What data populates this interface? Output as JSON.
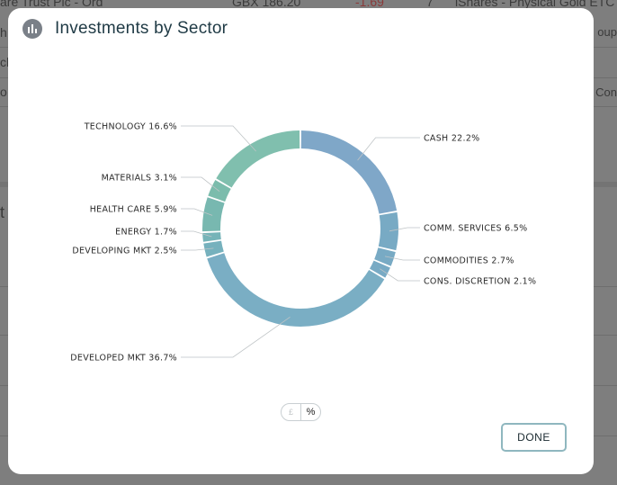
{
  "background": {
    "row1": {
      "c1": "are Trust Plc - Ord",
      "c2": "GBX 186.20",
      "c3": "-1.69",
      "c4": "7",
      "c5": "iShares - Physical Gold ETC"
    },
    "edge_group": "oup",
    "edge_con": "Con",
    "left_frag_1": "ch",
    "left_frag_2": "o",
    "left_frag_3": "t"
  },
  "modal": {
    "title": "Investments by Sector",
    "title_icon": "bar-chart-icon",
    "toggle": {
      "currency_label": "£",
      "percent_label": "%"
    },
    "done_label": "DONE"
  },
  "chart_data": {
    "type": "pie",
    "variant": "donut",
    "title": "Investments by Sector",
    "slices": [
      {
        "label": "CASH",
        "value": 22.2,
        "color": "#7fa7c8"
      },
      {
        "label": "COMM. SERVICES",
        "value": 6.5,
        "color": "#78aac4"
      },
      {
        "label": "COMMODITIES",
        "value": 2.7,
        "color": "#78aac4"
      },
      {
        "label": "CONS. DISCRETION",
        "value": 2.1,
        "color": "#78aac4"
      },
      {
        "label": "DEVELOPED MKT",
        "value": 36.7,
        "color": "#7aaec4"
      },
      {
        "label": "DEVELOPING MKT",
        "value": 2.5,
        "color": "#76b1bd"
      },
      {
        "label": "ENERGY",
        "value": 1.7,
        "color": "#76b4b8"
      },
      {
        "label": "HEALTH CARE",
        "value": 5.9,
        "color": "#78b8b0"
      },
      {
        "label": "MATERIALS",
        "value": 3.1,
        "color": "#7bbcac"
      },
      {
        "label": "TECHNOLOGY",
        "value": 16.6,
        "color": "#80bfae"
      }
    ],
    "label_format": "{label} {value}%"
  }
}
